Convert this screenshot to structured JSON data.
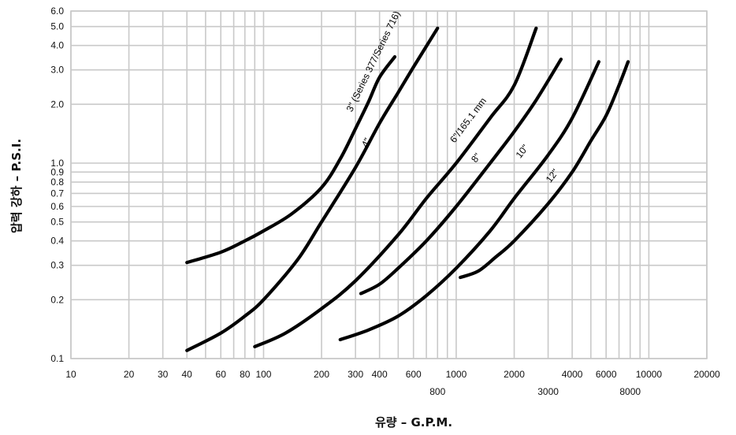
{
  "chart_data": {
    "type": "line",
    "title": "",
    "xlabel": "유량 – G.P.M.",
    "ylabel": "압력 강하 – P.S.I.",
    "xscale": "log",
    "yscale": "log",
    "xlim": [
      10,
      20000
    ],
    "ylim": [
      0.1,
      6.0
    ],
    "grid": true,
    "legend": "none",
    "x_ticks": [
      {
        "value": 10,
        "label": "10",
        "row": 0
      },
      {
        "value": 20,
        "label": "20",
        "row": 0
      },
      {
        "value": 30,
        "label": "30",
        "row": 0
      },
      {
        "value": 40,
        "label": "40",
        "row": 0
      },
      {
        "value": 60,
        "label": "60",
        "row": 0
      },
      {
        "value": 80,
        "label": "80",
        "row": 0
      },
      {
        "value": 100,
        "label": "100",
        "row": 0
      },
      {
        "value": 200,
        "label": "200",
        "row": 0
      },
      {
        "value": 300,
        "label": "300",
        "row": 0
      },
      {
        "value": 400,
        "label": "400",
        "row": 0
      },
      {
        "value": 600,
        "label": "600",
        "row": 0
      },
      {
        "value": 800,
        "label": "800",
        "row": 1
      },
      {
        "value": 1000,
        "label": "1000",
        "row": 0
      },
      {
        "value": 2000,
        "label": "2000",
        "row": 0
      },
      {
        "value": 3000,
        "label": "3000",
        "row": 1
      },
      {
        "value": 4000,
        "label": "4000",
        "row": 0
      },
      {
        "value": 6000,
        "label": "6000",
        "row": 0
      },
      {
        "value": 8000,
        "label": "8000",
        "row": 1
      },
      {
        "value": 10000,
        "label": "10000",
        "row": 0
      },
      {
        "value": 20000,
        "label": "20000",
        "row": 0
      }
    ],
    "x_grid": [
      10,
      20,
      30,
      40,
      50,
      60,
      70,
      80,
      90,
      100,
      200,
      300,
      400,
      500,
      600,
      700,
      800,
      900,
      1000,
      2000,
      3000,
      4000,
      5000,
      6000,
      7000,
      8000,
      9000,
      10000,
      20000
    ],
    "y_ticks": [
      {
        "value": 0.1,
        "label": "0.1"
      },
      {
        "value": 0.2,
        "label": "0.2"
      },
      {
        "value": 0.3,
        "label": "0.3"
      },
      {
        "value": 0.4,
        "label": "0.4"
      },
      {
        "value": 0.5,
        "label": "0.5"
      },
      {
        "value": 0.6,
        "label": "0.6"
      },
      {
        "value": 0.7,
        "label": "0.7"
      },
      {
        "value": 0.8,
        "label": "0.8"
      },
      {
        "value": 0.9,
        "label": "0.9"
      },
      {
        "value": 1.0,
        "label": "1.0"
      },
      {
        "value": 2.0,
        "label": "2.0"
      },
      {
        "value": 3.0,
        "label": "3.0"
      },
      {
        "value": 4.0,
        "label": "4.0"
      },
      {
        "value": 5.0,
        "label": "5.0"
      },
      {
        "value": 6.0,
        "label": "6.0"
      }
    ],
    "series": [
      {
        "name": "3\" (Series 377/Series 716)",
        "points": [
          [
            40,
            0.31
          ],
          [
            60,
            0.35
          ],
          [
            80,
            0.4
          ],
          [
            100,
            0.45
          ],
          [
            140,
            0.55
          ],
          [
            200,
            0.75
          ],
          [
            250,
            1.05
          ],
          [
            300,
            1.5
          ],
          [
            350,
            2.05
          ],
          [
            400,
            2.75
          ],
          [
            480,
            3.5
          ]
        ]
      },
      {
        "name": "4\"",
        "points": [
          [
            40,
            0.11
          ],
          [
            60,
            0.135
          ],
          [
            80,
            0.165
          ],
          [
            100,
            0.2
          ],
          [
            150,
            0.32
          ],
          [
            200,
            0.5
          ],
          [
            300,
            0.95
          ],
          [
            400,
            1.6
          ],
          [
            500,
            2.3
          ],
          [
            600,
            3.1
          ],
          [
            800,
            4.9
          ]
        ]
      },
      {
        "name": "6\"/165.1 mm",
        "points": [
          [
            90,
            0.115
          ],
          [
            130,
            0.135
          ],
          [
            200,
            0.18
          ],
          [
            300,
            0.25
          ],
          [
            500,
            0.43
          ],
          [
            700,
            0.66
          ],
          [
            1000,
            1.0
          ],
          [
            1500,
            1.7
          ],
          [
            2000,
            2.5
          ],
          [
            2600,
            4.9
          ]
        ]
      },
      {
        "name": "8\"",
        "points": [
          [
            320,
            0.215
          ],
          [
            400,
            0.24
          ],
          [
            500,
            0.29
          ],
          [
            700,
            0.4
          ],
          [
            1000,
            0.6
          ],
          [
            1500,
            1.0
          ],
          [
            2000,
            1.45
          ],
          [
            2600,
            2.1
          ],
          [
            3500,
            3.4
          ]
        ]
      },
      {
        "name": "10\"",
        "points": [
          [
            250,
            0.125
          ],
          [
            350,
            0.14
          ],
          [
            500,
            0.165
          ],
          [
            700,
            0.21
          ],
          [
            1000,
            0.29
          ],
          [
            1500,
            0.45
          ],
          [
            2000,
            0.66
          ],
          [
            3000,
            1.1
          ],
          [
            4000,
            1.7
          ],
          [
            5500,
            3.3
          ]
        ]
      },
      {
        "name": "12\"",
        "points": [
          [
            1050,
            0.26
          ],
          [
            1300,
            0.28
          ],
          [
            1600,
            0.33
          ],
          [
            2000,
            0.4
          ],
          [
            3000,
            0.62
          ],
          [
            4000,
            0.9
          ],
          [
            5000,
            1.3
          ],
          [
            6000,
            1.75
          ],
          [
            7000,
            2.5
          ],
          [
            7800,
            3.3
          ]
        ]
      }
    ]
  }
}
